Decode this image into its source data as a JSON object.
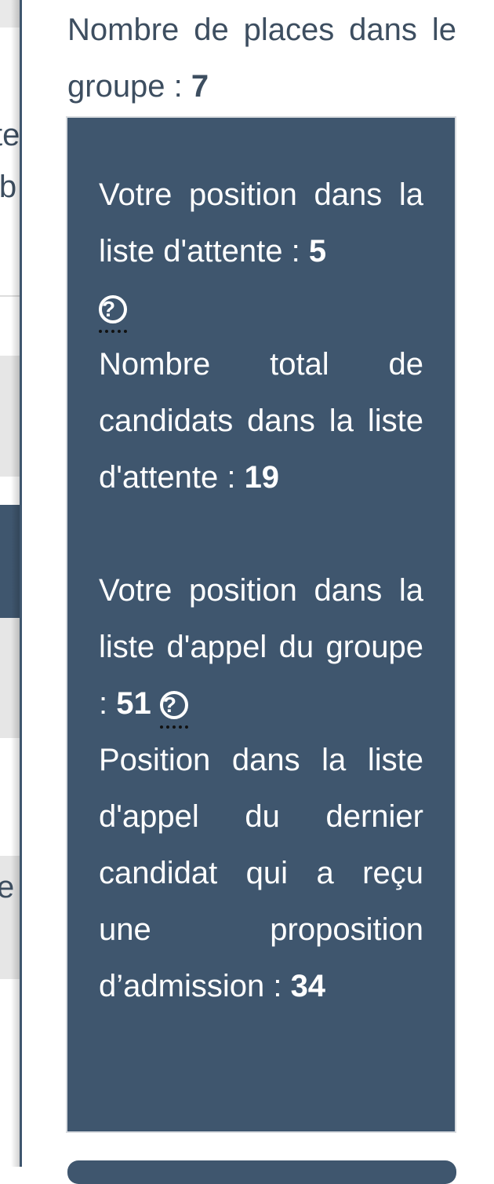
{
  "background_fragments": {
    "f1": "te",
    "f2": "ib",
    "f3": "e"
  },
  "group": {
    "label": "Nombre de places dans le groupe :",
    "value": "7"
  },
  "waitlist": {
    "position_label": "Votre position dans la liste d'attente :",
    "position_value": "5",
    "total_label": "Nombre total de candidats dans la liste d'attente :",
    "total_value": "19",
    "call_label": "Votre position dans la liste d'appel du groupe :",
    "call_value": "51",
    "last_label": "Position dans la liste d'appel du dernier candidat qui a reçu une proposition d’admission :",
    "last_value": "34",
    "help_glyph": "?"
  },
  "colors": {
    "panel": "#3f566e",
    "text": "#3d4e60"
  }
}
